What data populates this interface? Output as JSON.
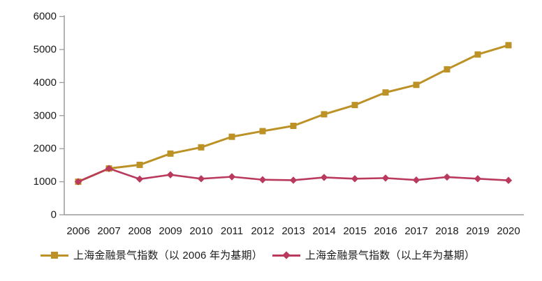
{
  "chart_data": {
    "type": "line",
    "title": "",
    "xlabel": "",
    "ylabel": "",
    "categories": [
      "2006",
      "2007",
      "2008",
      "2009",
      "2010",
      "2011",
      "2012",
      "2013",
      "2014",
      "2015",
      "2016",
      "2017",
      "2018",
      "2019",
      "2020"
    ],
    "series": [
      {
        "name": "上海金融景气指数（以 2006 年为基期）",
        "marker": "square",
        "color": "#BC9126",
        "values": [
          1000,
          1400,
          1510,
          1850,
          2040,
          2360,
          2530,
          2690,
          3040,
          3320,
          3700,
          3930,
          4400,
          4850,
          5130
        ]
      },
      {
        "name": "上海金融景气指数（以上年为基期）",
        "marker": "diamond",
        "color": "#B93A5C",
        "values": [
          1000,
          1400,
          1080,
          1210,
          1090,
          1150,
          1060,
          1045,
          1130,
          1090,
          1110,
          1050,
          1140,
          1090,
          1040
        ]
      }
    ],
    "ylim": [
      0,
      6000
    ],
    "ytick_step": 1000,
    "yticks": [
      "0",
      "1000",
      "2000",
      "3000",
      "4000",
      "5000",
      "6000"
    ],
    "grid": false,
    "legend_position": "bottom",
    "axis_color": "#9b9b9b",
    "text_color": "#1a1a1a"
  }
}
